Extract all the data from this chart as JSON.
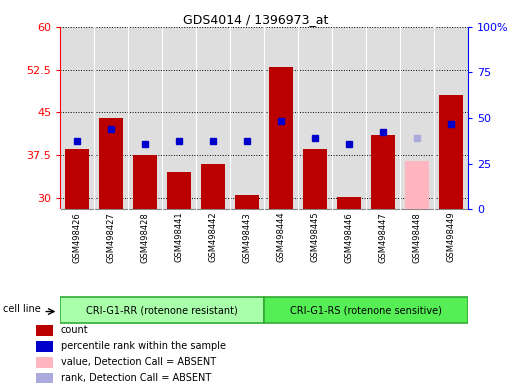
{
  "title": "GDS4014 / 1396973_at",
  "samples": [
    "GSM498426",
    "GSM498427",
    "GSM498428",
    "GSM498441",
    "GSM498442",
    "GSM498443",
    "GSM498444",
    "GSM498445",
    "GSM498446",
    "GSM498447",
    "GSM498448",
    "GSM498449"
  ],
  "count_values": [
    38.5,
    44.0,
    37.5,
    34.5,
    36.0,
    30.5,
    53.0,
    38.5,
    30.2,
    41.0,
    36.5,
    48.0
  ],
  "rank_values": [
    40.0,
    42.0,
    39.5,
    40.0,
    40.0,
    40.0,
    43.5,
    40.5,
    39.5,
    41.5,
    40.5,
    43.0
  ],
  "count_is_absent": [
    false,
    false,
    false,
    false,
    false,
    false,
    false,
    false,
    false,
    false,
    true,
    false
  ],
  "rank_is_absent": [
    false,
    false,
    false,
    false,
    false,
    false,
    false,
    false,
    false,
    false,
    true,
    false
  ],
  "ylim_left": [
    28,
    60
  ],
  "ylim_right": [
    0,
    100
  ],
  "yticks_left": [
    30,
    37.5,
    45,
    52.5,
    60
  ],
  "yticks_right": [
    0,
    25,
    50,
    75,
    100
  ],
  "group1_label": "CRI-G1-RR (rotenone resistant)",
  "group2_label": "CRI-G1-RS (rotenone sensitive)",
  "group1_count": 6,
  "group2_count": 6,
  "cell_line_label": "cell line",
  "bar_color_red": "#BB0000",
  "bar_color_pink": "#FFB6C1",
  "dot_color_blue": "#0000CC",
  "dot_color_lightblue": "#AAAADD",
  "group1_bg": "#AAFFAA",
  "group2_bg": "#55EE55",
  "plot_bg": "#DEDEDE",
  "legend_items": [
    "count",
    "percentile rank within the sample",
    "value, Detection Call = ABSENT",
    "rank, Detection Call = ABSENT"
  ],
  "legend_colors": [
    "#BB0000",
    "#0000CC",
    "#FFB6C1",
    "#AAAADD"
  ]
}
